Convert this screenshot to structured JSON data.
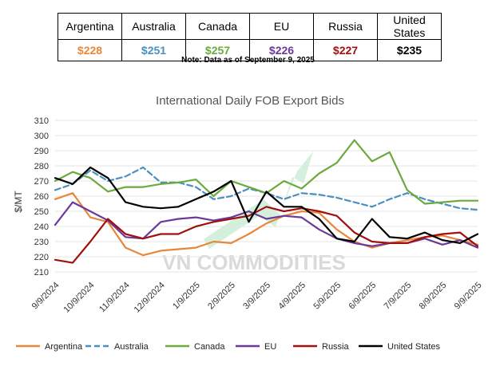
{
  "price_table": {
    "headers": [
      "Argentina",
      "Australia",
      "Canada",
      "EU",
      "Russia",
      "United States"
    ],
    "values": [
      "$228",
      "$251",
      "$257",
      "$226",
      "$227",
      "$235"
    ],
    "colors": [
      "#e8873a",
      "#4a8fc0",
      "#6aaa3e",
      "#6a3a9a",
      "#a01010",
      "#000000"
    ]
  },
  "note": "Note: Data as of September 9, 2025",
  "watermark": "VN COMMODITIES",
  "chart_data": {
    "type": "line",
    "title": "International Daily FOB Export Bids",
    "xlabel": "",
    "ylabel": "$/MT",
    "ylim": [
      210,
      310
    ],
    "yticks": [
      210,
      220,
      230,
      240,
      250,
      260,
      270,
      280,
      290,
      300,
      310
    ],
    "xticks": [
      "9/9/2024",
      "10/9/2024",
      "11/9/2024",
      "12/9/2024",
      "1/9/2025",
      "2/9/2025",
      "3/9/2025",
      "4/9/2025",
      "5/9/2025",
      "6/9/2025",
      "7/9/2025",
      "8/9/2025",
      "9/9/2025"
    ],
    "x": [
      0,
      0.5,
      1,
      1.5,
      2,
      2.5,
      3,
      3.5,
      4,
      4.5,
      5,
      5.5,
      6,
      6.5,
      7,
      7.5,
      8,
      8.5,
      9,
      9.5,
      10,
      10.5,
      11,
      11.5,
      12
    ],
    "series": [
      {
        "name": "Argentina",
        "color": "#e8873a",
        "dash": "solid",
        "values": [
          258,
          262,
          246,
          243,
          226,
          221,
          224,
          225,
          226,
          230,
          229,
          235,
          242,
          247,
          250,
          249,
          238,
          230,
          226,
          229,
          231,
          233,
          234,
          231,
          228
        ]
      },
      {
        "name": "Australia",
        "color": "#4a8fc0",
        "dash": "dashed",
        "values": [
          264,
          268,
          277,
          270,
          273,
          279,
          269,
          269,
          266,
          258,
          260,
          265,
          262,
          258,
          262,
          261,
          259,
          256,
          253,
          258,
          262,
          258,
          255,
          252,
          251
        ]
      },
      {
        "name": "Canada",
        "color": "#6aaa3e",
        "dash": "solid",
        "values": [
          270,
          276,
          272,
          263,
          266,
          266,
          268,
          269,
          271,
          260,
          270,
          266,
          262,
          270,
          265,
          275,
          282,
          297,
          283,
          289,
          264,
          255,
          256,
          257,
          257
        ]
      },
      {
        "name": "EU",
        "color": "#6a3a9a",
        "dash": "solid",
        "values": [
          241,
          256,
          250,
          244,
          233,
          232,
          243,
          245,
          246,
          244,
          246,
          250,
          245,
          247,
          246,
          238,
          232,
          229,
          227,
          229,
          229,
          232,
          228,
          231,
          226
        ]
      },
      {
        "name": "Russia",
        "color": "#a01010",
        "dash": "solid",
        "values": [
          218,
          216,
          230,
          245,
          235,
          232,
          235,
          235,
          240,
          243,
          245,
          247,
          253,
          250,
          252,
          250,
          247,
          236,
          230,
          229,
          229,
          233,
          235,
          236,
          227
        ]
      },
      {
        "name": "United States",
        "color": "#000000",
        "dash": "solid",
        "values": [
          272,
          268,
          279,
          272,
          256,
          253,
          252,
          253,
          258,
          263,
          270,
          243,
          263,
          253,
          253,
          245,
          232,
          230,
          245,
          233,
          232,
          236,
          231,
          229,
          235
        ]
      }
    ],
    "legend_position": "bottom"
  }
}
